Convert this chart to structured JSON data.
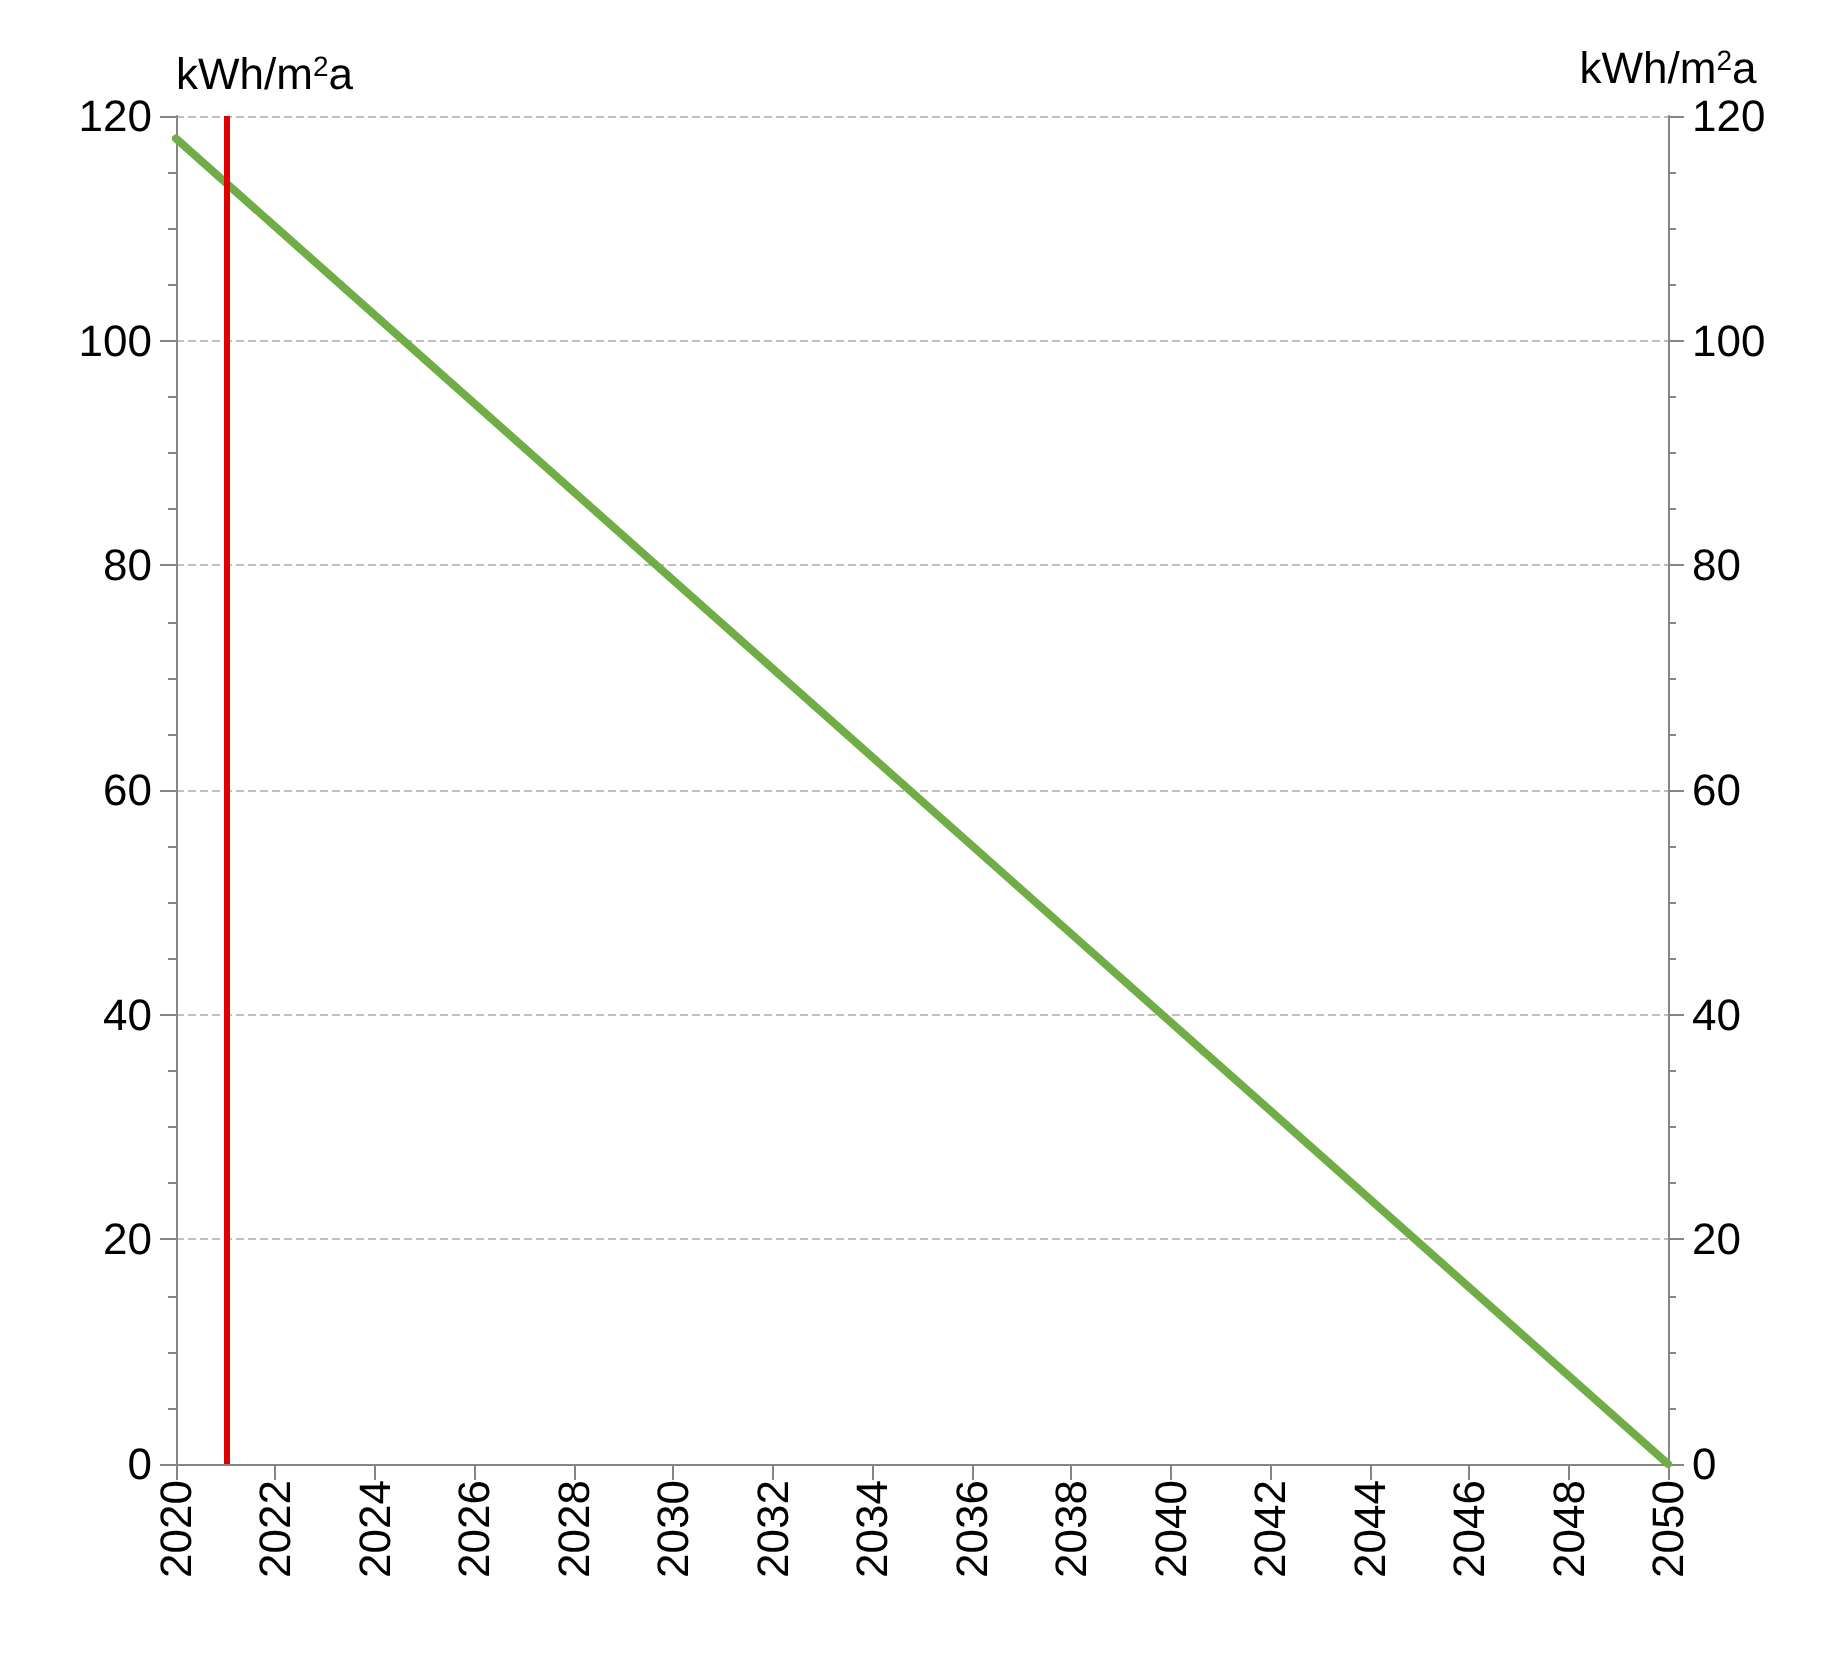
{
  "chart_data": {
    "type": "line",
    "x": [
      2020,
      2050
    ],
    "series": [
      {
        "color": "#70ad47",
        "values": [
          118,
          0
        ]
      }
    ],
    "xlim": [
      2020,
      2050
    ],
    "xticks": [
      2020,
      2022,
      2024,
      2026,
      2028,
      2030,
      2032,
      2034,
      2036,
      2038,
      2040,
      2042,
      2044,
      2046,
      2048,
      2050
    ],
    "ylim": [
      0,
      120
    ],
    "yticks": [
      0,
      20,
      40,
      60,
      80,
      100,
      120
    ],
    "y2lim": [
      0,
      120
    ],
    "y2ticks": [
      0,
      20,
      40,
      60,
      80,
      100,
      120
    ],
    "ylabel": "kWh/m$^{2}$a",
    "y2label": "kWh/m$^{2}$a",
    "ref_lines": [
      {
        "axis": "x",
        "value": 2021,
        "color": "#e00000"
      }
    ],
    "grid": "y",
    "marker": "none",
    "line_style": "solid"
  }
}
